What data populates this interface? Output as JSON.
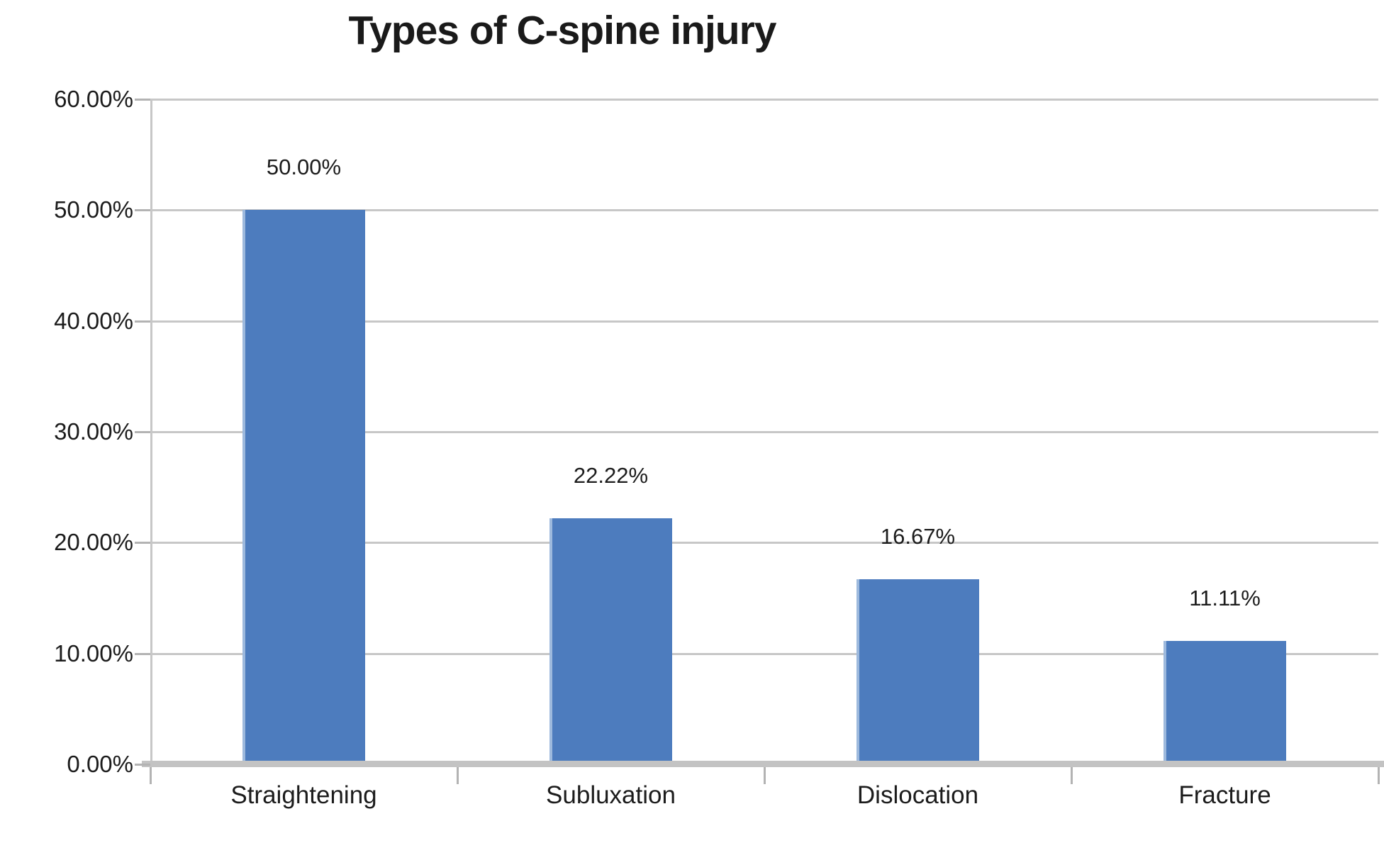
{
  "chart_data": {
    "type": "bar",
    "title": "Types of C-spine injury",
    "categories": [
      "Straightening",
      "Subluxation",
      "Dislocation",
      "Fracture"
    ],
    "values": [
      50.0,
      22.22,
      16.67,
      11.11
    ],
    "value_labels": [
      "50.00%",
      "22.22%",
      "16.67%",
      "11.11%"
    ],
    "ylim": [
      0,
      60
    ],
    "y_ticks": [
      {
        "value": 60,
        "label": "60.00%"
      },
      {
        "value": 50,
        "label": "50.00%"
      },
      {
        "value": 40,
        "label": "40.00%"
      },
      {
        "value": 30,
        "label": "30.00%"
      },
      {
        "value": 20,
        "label": "20.00%"
      },
      {
        "value": 10,
        "label": "10.00%"
      },
      {
        "value": 0,
        "label": "0.00%"
      }
    ],
    "xlabel": "",
    "ylabel": "",
    "grid": true,
    "legend_position": "none",
    "colors": {
      "bar": "#4d7cbe",
      "bar_edge_highlight": "#9db9dd",
      "gridline": "#c7c7c7",
      "axis": "#b3b3b3",
      "text": "#1c1c1c"
    }
  }
}
